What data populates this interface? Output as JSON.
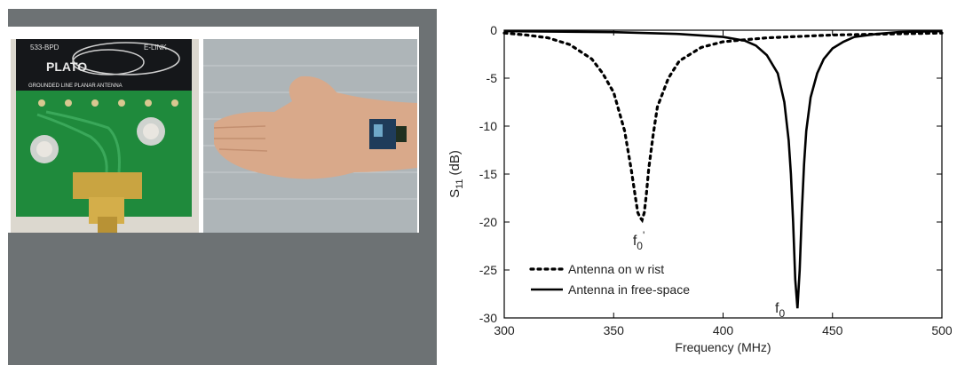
{
  "photos": {
    "pcb": {
      "board_text_1": "533-BPD",
      "board_text_2": "E-LINK",
      "board_logo": "PLATO",
      "board_caption": "GROUNDED LINE PLANAR ANTENNA"
    }
  },
  "chart_data": {
    "type": "line",
    "xlabel": "Frequency (MHz)",
    "ylabel_base": "S",
    "ylabel_sub": "11",
    "ylabel_unit": "(dB)",
    "xlim": [
      300,
      500
    ],
    "ylim": [
      -30,
      0
    ],
    "xticks": [
      300,
      350,
      400,
      450,
      500
    ],
    "yticks": [
      0,
      -5,
      -10,
      -15,
      -20,
      -25,
      -30
    ],
    "grid": false,
    "legend_position": "bottom-left",
    "series": [
      {
        "name": "Antenna on w rist",
        "style": "dotted",
        "color": "#000000",
        "x": [
          300,
          310,
          320,
          330,
          340,
          345,
          350,
          355,
          358,
          360,
          361,
          362,
          363,
          364,
          365,
          366,
          368,
          370,
          375,
          380,
          390,
          400,
          420,
          450,
          500
        ],
        "y": [
          -0.3,
          -0.5,
          -0.8,
          -1.5,
          -3.0,
          -4.5,
          -6.5,
          -10.5,
          -14.5,
          -17.5,
          -19.0,
          -19.5,
          -19.8,
          -19.0,
          -17.0,
          -14.5,
          -11.0,
          -8.0,
          -5.0,
          -3.2,
          -1.8,
          -1.2,
          -0.8,
          -0.5,
          -0.3
        ]
      },
      {
        "name": "Antenna in free-space",
        "style": "solid",
        "color": "#000000",
        "x": [
          300,
          350,
          380,
          400,
          410,
          415,
          420,
          425,
          428,
          430,
          431,
          432,
          433,
          434,
          435,
          436,
          437,
          438,
          440,
          443,
          446,
          450,
          455,
          460,
          470,
          480,
          500
        ],
        "y": [
          -0.1,
          -0.2,
          -0.4,
          -0.7,
          -1.1,
          -1.6,
          -2.6,
          -4.5,
          -7.5,
          -11.5,
          -15.0,
          -20.0,
          -26.0,
          -29.0,
          -25.0,
          -19.0,
          -14.0,
          -10.5,
          -7.0,
          -4.5,
          -3.0,
          -1.9,
          -1.2,
          -0.7,
          -0.4,
          -0.2,
          -0.1
        ]
      }
    ],
    "annotations": [
      {
        "text": "f",
        "sub": "0",
        "sup": "'",
        "x": 362,
        "y": -21.5
      },
      {
        "text": "f",
        "sub": "0",
        "x": 427,
        "y": -28.5
      }
    ]
  }
}
